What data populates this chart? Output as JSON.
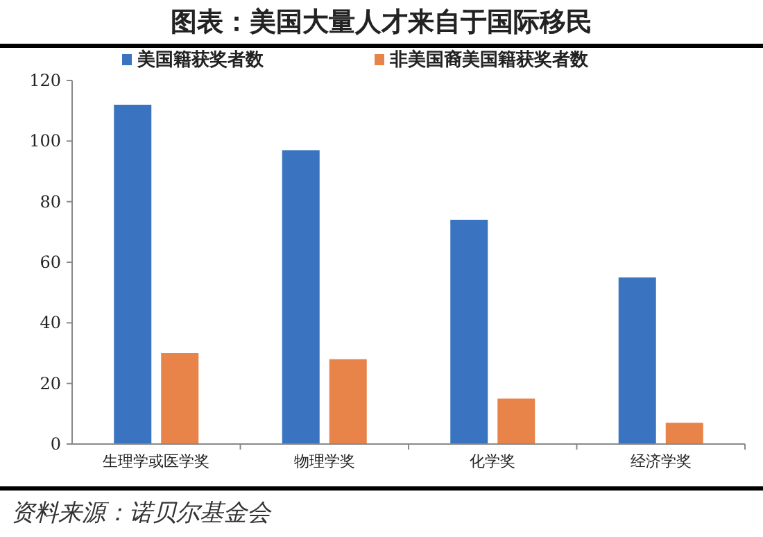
{
  "chart_data": {
    "type": "bar",
    "title": "图表：美国大量人才来自于国际移民",
    "categories": [
      "生理学或医学奖",
      "物理学奖",
      "化学奖",
      "经济学奖"
    ],
    "series": [
      {
        "name": "美国籍获奖者数",
        "color": "#3a74c0",
        "values": [
          112,
          97,
          74,
          55
        ]
      },
      {
        "name": "非美国裔美国籍获奖者数",
        "color": "#e8844a",
        "values": [
          30,
          28,
          15,
          7
        ]
      }
    ],
    "ylim": [
      0,
      120
    ],
    "yticks": [
      0,
      20,
      40,
      60,
      80,
      100,
      120
    ],
    "grid": false,
    "legend": "top",
    "annotations": [
      "资料来源：诺贝尔基金会"
    ]
  }
}
